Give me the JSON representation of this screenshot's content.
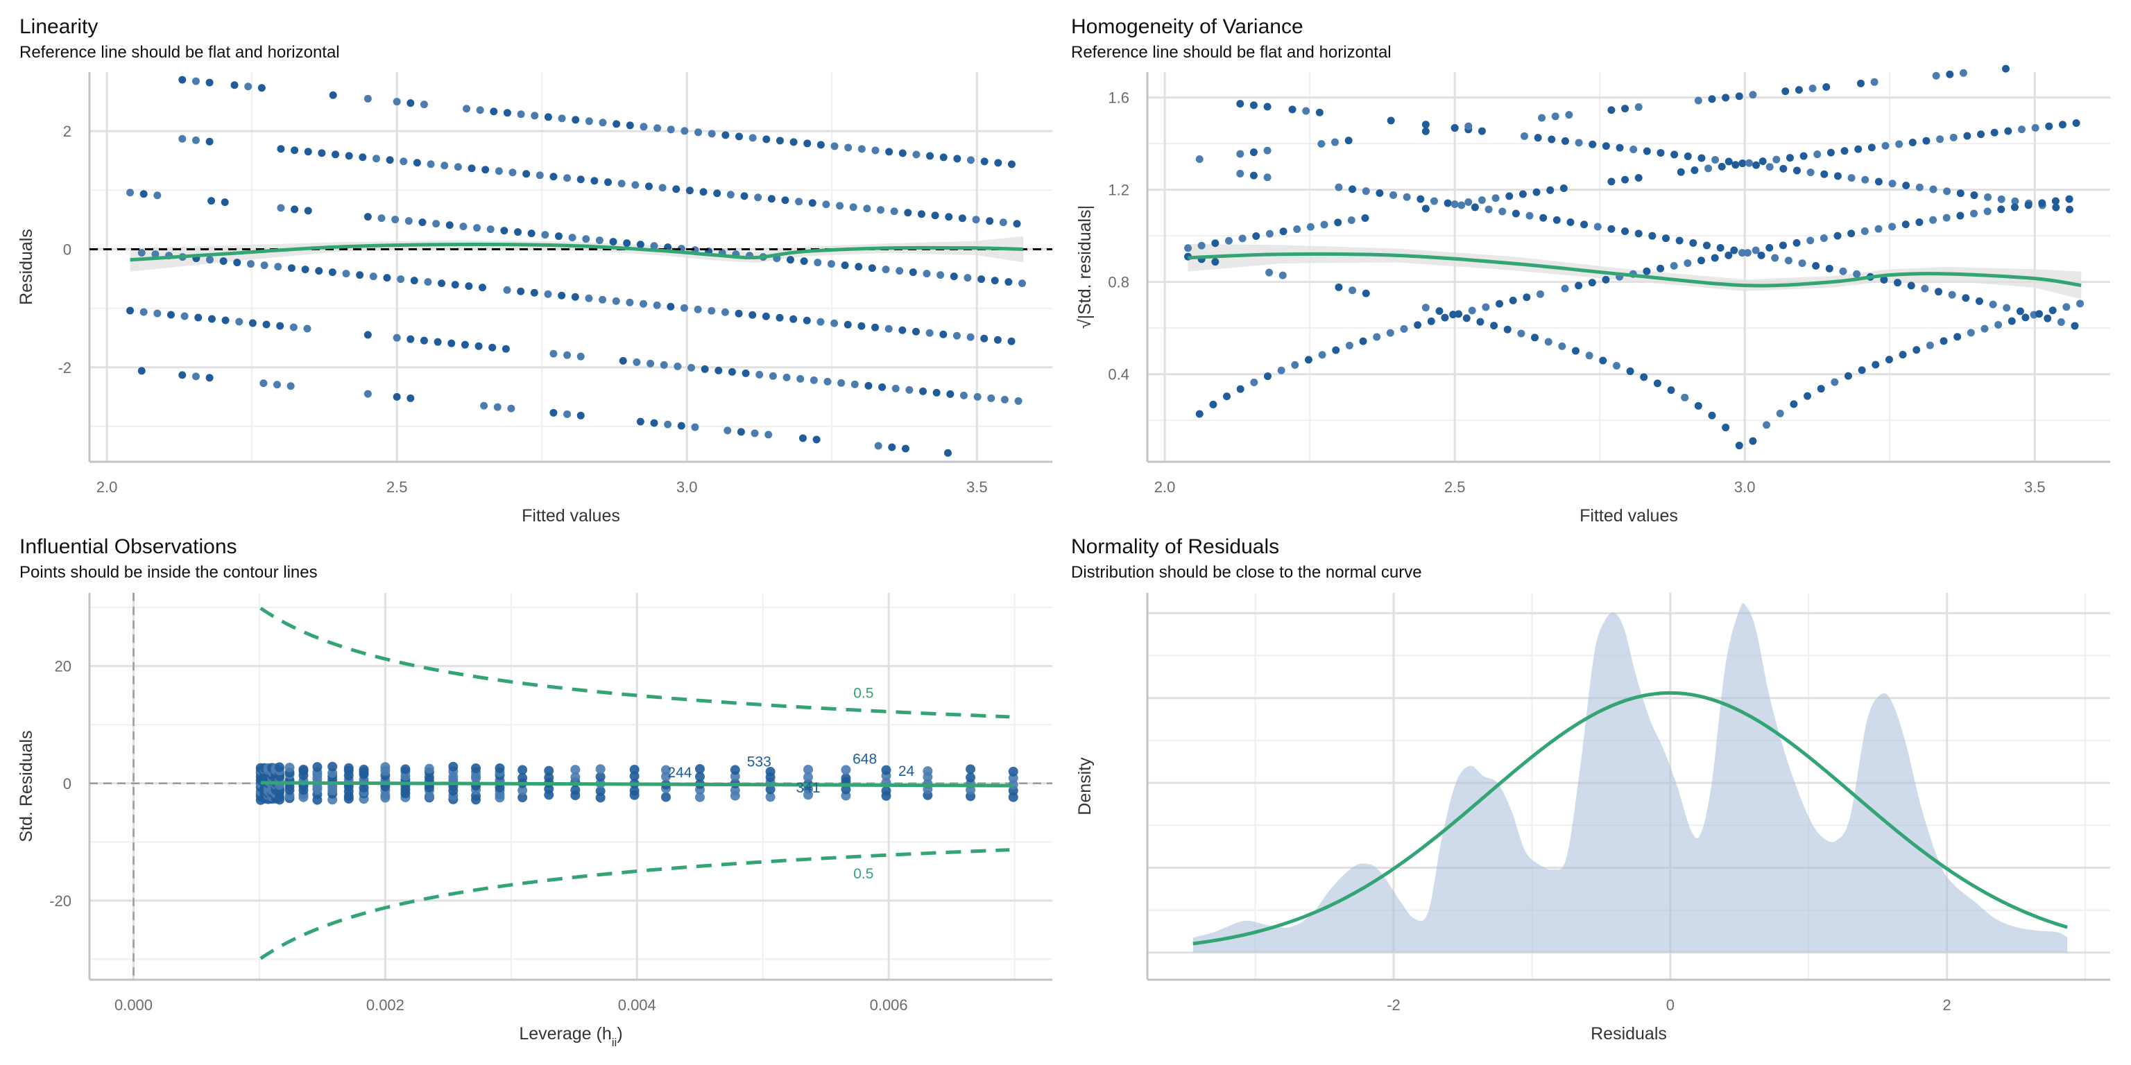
{
  "colors": {
    "point_dark": "#1f5c99",
    "point_light": "#4a7cb0",
    "smooth": "#33a474",
    "ribbon": "#e0e0e0",
    "density_fill": "#cfdbe9",
    "grid_major": "#e0e0e0",
    "grid_minor": "#efefef",
    "axis": "#c3c3c3"
  },
  "chart_data": [
    {
      "id": "linearity",
      "type": "scatter",
      "title": "Linearity",
      "subtitle": "Reference line should be flat and horizontal",
      "xlabel": "Fitted values",
      "ylabel": "Residuals",
      "xlim": [
        1.97,
        3.63
      ],
      "ylim": [
        -3.6,
        3.0
      ],
      "xticks": [
        2.0,
        2.5,
        3.0,
        3.5
      ],
      "xtick_labels": [
        "2.0",
        "2.5",
        "3.0",
        "3.5"
      ],
      "yticks": [
        -2,
        0,
        2
      ],
      "ytick_labels": [
        "-2",
        "0",
        "2"
      ],
      "reference_line": 0,
      "bands": [
        {
          "k": 5,
          "ranges": [
            [
              2.13,
              2.18
            ],
            [
              2.22,
              2.27
            ],
            [
              2.39,
              2.39
            ],
            [
              2.45,
              2.45
            ],
            [
              2.5,
              2.55
            ],
            [
              2.62,
              3.58
            ]
          ]
        },
        {
          "k": 4,
          "ranges": [
            [
              2.13,
              2.2
            ],
            [
              2.3,
              3.58
            ]
          ]
        },
        {
          "k": 3,
          "ranges": [
            [
              2.04,
              2.09
            ],
            [
              2.18,
              2.22
            ],
            [
              2.3,
              2.36
            ],
            [
              2.45,
              3.58
            ]
          ]
        },
        {
          "k": 2,
          "ranges": [
            [
              2.06,
              2.65
            ],
            [
              2.69,
              3.58
            ]
          ]
        },
        {
          "k": 1,
          "ranges": [
            [
              2.04,
              2.36
            ],
            [
              2.45,
              2.45
            ],
            [
              2.5,
              2.71
            ],
            [
              2.77,
              2.83
            ],
            [
              2.89,
              3.58
            ]
          ]
        },
        {
          "k": 0,
          "ranges": [
            [
              2.06,
              2.06
            ],
            [
              2.13,
              2.2
            ],
            [
              2.27,
              2.33
            ],
            [
              2.45,
              2.45
            ],
            [
              2.5,
              2.53
            ],
            [
              2.65,
              2.71
            ],
            [
              2.77,
              2.83
            ],
            [
              2.92,
              3.02
            ],
            [
              3.07,
              3.16
            ],
            [
              3.2,
              3.23
            ],
            [
              3.33,
              3.38
            ],
            [
              3.45,
              3.45
            ]
          ]
        },
        {
          "k": 6,
          "ranges": []
        }
      ],
      "fitted_step": 0.0235,
      "smooth": {
        "x": [
          2.04,
          2.2,
          2.4,
          2.6,
          2.8,
          2.95,
          3.05,
          3.12,
          3.2,
          3.35,
          3.5,
          3.58
        ],
        "y": [
          -0.18,
          -0.08,
          0.04,
          0.08,
          0.06,
          -0.02,
          -0.1,
          -0.14,
          -0.04,
          0.02,
          0.02,
          0.0
        ],
        "se": [
          0.2,
          0.14,
          0.08,
          0.07,
          0.07,
          0.08,
          0.09,
          0.09,
          0.08,
          0.08,
          0.12,
          0.22
        ]
      }
    },
    {
      "id": "homogeneity",
      "type": "scatter",
      "title": "Homogeneity of Variance",
      "subtitle": "Reference line should be flat and horizontal",
      "xlabel": "Fitted values",
      "ylabel": "√|Std. residuals|",
      "xlim": [
        1.97,
        3.63
      ],
      "ylim": [
        0.02,
        1.71
      ],
      "xticks": [
        2.0,
        2.5,
        3.0,
        3.5
      ],
      "xtick_labels": [
        "2.0",
        "2.5",
        "3.0",
        "3.5"
      ],
      "yticks": [
        0.4,
        0.8,
        1.2,
        1.6
      ],
      "ytick_labels": [
        "0.4",
        "0.8",
        "1.2",
        "1.6"
      ],
      "residual_sd": 1.16,
      "smooth": {
        "x": [
          2.04,
          2.2,
          2.4,
          2.6,
          2.8,
          3.0,
          3.15,
          3.25,
          3.35,
          3.5,
          3.58
        ],
        "y": [
          0.905,
          0.92,
          0.915,
          0.88,
          0.83,
          0.785,
          0.8,
          0.83,
          0.835,
          0.815,
          0.785
        ],
        "se": [
          0.06,
          0.04,
          0.03,
          0.03,
          0.025,
          0.025,
          0.025,
          0.025,
          0.03,
          0.04,
          0.06
        ]
      }
    },
    {
      "id": "influential",
      "type": "scatter",
      "title": "Influential Observations",
      "subtitle": "Points should be inside the contour lines",
      "xlabel": "Leverage (h",
      "xlabel_sub": "ii",
      "xlabel_close": ")",
      "ylabel": "Std. Residuals",
      "xlim": [
        -0.00035,
        0.0073
      ],
      "ylim": [
        -33.5,
        32.5
      ],
      "xticks": [
        0.0,
        0.002,
        0.004,
        0.006
      ],
      "xtick_labels": [
        "0.000",
        "0.002",
        "0.004",
        "0.006"
      ],
      "yticks": [
        -20,
        0,
        20
      ],
      "ytick_labels": [
        "-20",
        "0",
        "20"
      ],
      "leverage_columns": [
        0.00101,
        0.00104,
        0.00107,
        0.0011,
        0.00113,
        0.00116,
        0.00124,
        0.00135,
        0.00146,
        0.00158,
        0.00171,
        0.00183,
        0.002,
        0.00216,
        0.00235,
        0.00254,
        0.00272,
        0.00291,
        0.00309,
        0.0033,
        0.00351,
        0.00371,
        0.00398,
        0.00423,
        0.0045,
        0.00478,
        0.00506,
        0.00536,
        0.00566,
        0.00598,
        0.00631,
        0.00665,
        0.00699
      ],
      "cook_contour_level": "0.5",
      "contour_label_x": 0.0058,
      "point_labels": [
        {
          "id": "244",
          "x": 0.00434,
          "y": 2.0
        },
        {
          "id": "533",
          "x": 0.00497,
          "y": 3.8
        },
        {
          "id": "341",
          "x": 0.00536,
          "y": -0.6
        },
        {
          "id": "648",
          "x": 0.00581,
          "y": 4.3
        },
        {
          "id": "24",
          "x": 0.00614,
          "y": 2.2
        }
      ],
      "contour_labels": [
        "0.5",
        "0.5"
      ]
    },
    {
      "id": "normality",
      "type": "area",
      "title": "Normality of Residuals",
      "subtitle": "Distribution should be close to the normal curve",
      "xlabel": "Residuals",
      "ylabel": "Density",
      "xlim": [
        -3.78,
        3.18
      ],
      "ylim_relative": [
        -0.08,
        1.06
      ],
      "xticks": [
        -2,
        0,
        2
      ],
      "xtick_labels": [
        "-2",
        "0",
        "2"
      ],
      "density": {
        "x": [
          -3.45,
          -3.3,
          -3.15,
          -3.05,
          -2.9,
          -2.75,
          -2.6,
          -2.45,
          -2.3,
          -2.2,
          -2.1,
          -1.95,
          -1.85,
          -1.75,
          -1.65,
          -1.55,
          -1.45,
          -1.35,
          -1.25,
          -1.15,
          -1.05,
          -0.95,
          -0.85,
          -0.75,
          -0.65,
          -0.55,
          -0.47,
          -0.4,
          -0.33,
          -0.25,
          -0.15,
          -0.05,
          0.05,
          0.15,
          0.22,
          0.3,
          0.4,
          0.5,
          0.55,
          0.62,
          0.72,
          0.85,
          1.0,
          1.1,
          1.2,
          1.3,
          1.42,
          1.52,
          1.6,
          1.7,
          1.82,
          1.95,
          2.05,
          2.2,
          2.35,
          2.5,
          2.65,
          2.8,
          2.87
        ],
        "y": [
          0.044,
          0.06,
          0.085,
          0.094,
          0.08,
          0.075,
          0.11,
          0.19,
          0.25,
          0.262,
          0.24,
          0.15,
          0.1,
          0.12,
          0.34,
          0.5,
          0.55,
          0.52,
          0.5,
          0.42,
          0.3,
          0.26,
          0.245,
          0.28,
          0.55,
          0.88,
          0.98,
          1.0,
          0.95,
          0.82,
          0.69,
          0.6,
          0.49,
          0.36,
          0.35,
          0.5,
          0.85,
          1.01,
          1.02,
          0.95,
          0.75,
          0.56,
          0.4,
          0.34,
          0.33,
          0.4,
          0.68,
          0.76,
          0.74,
          0.62,
          0.42,
          0.26,
          0.2,
          0.15,
          0.1,
          0.075,
          0.065,
          0.06,
          0.045
        ]
      },
      "normal_curve": {
        "mean": 0.0,
        "peak": 0.765,
        "sd": 1.33,
        "x_range": [
          -3.45,
          2.87
        ]
      }
    }
  ]
}
